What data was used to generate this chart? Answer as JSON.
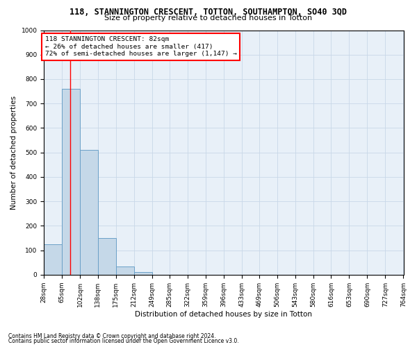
{
  "title": "118, STANNINGTON CRESCENT, TOTTON, SOUTHAMPTON, SO40 3QD",
  "subtitle": "Size of property relative to detached houses in Totton",
  "xlabel": "Distribution of detached houses by size in Totton",
  "ylabel": "Number of detached properties",
  "footnote1": "Contains HM Land Registry data © Crown copyright and database right 2024.",
  "footnote2": "Contains public sector information licensed under the Open Government Licence v3.0.",
  "bin_edges": [
    28,
    65,
    102,
    138,
    175,
    212,
    249,
    285,
    322,
    359,
    396,
    433,
    469,
    506,
    543,
    580,
    616,
    653,
    690,
    727,
    764
  ],
  "bar_heights": [
    125,
    760,
    510,
    150,
    35,
    10,
    0,
    0,
    0,
    0,
    0,
    0,
    0,
    0,
    0,
    0,
    0,
    0,
    0,
    0
  ],
  "bar_color": "#c5d8e8",
  "bar_edge_color": "#6aa0c7",
  "red_line_x": 82,
  "annotation_text": "118 STANNINGTON CRESCENT: 82sqm\n← 26% of detached houses are smaller (417)\n72% of semi-detached houses are larger (1,147) →",
  "annotation_box_color": "white",
  "annotation_box_edge": "red",
  "ylim": [
    0,
    1000
  ],
  "yticks": [
    0,
    100,
    200,
    300,
    400,
    500,
    600,
    700,
    800,
    900,
    1000
  ],
  "background_color": "white",
  "grid_color": "#c8d8e8",
  "title_fontsize": 8.5,
  "subtitle_fontsize": 8.0,
  "xlabel_fontsize": 7.5,
  "ylabel_fontsize": 7.5,
  "tick_fontsize": 6.5,
  "annotation_fontsize": 6.8,
  "footnote_fontsize": 5.5
}
